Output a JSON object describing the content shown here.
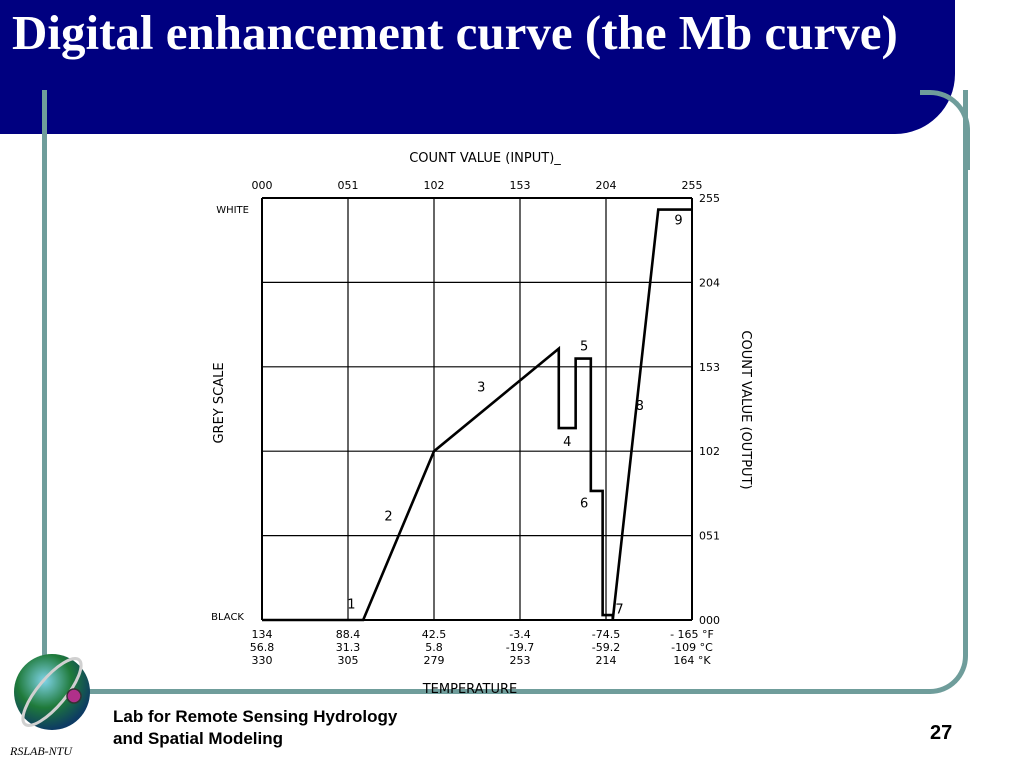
{
  "slide": {
    "title": "Digital enhancement curve (the Mb curve)",
    "footer_line1": "Lab for Remote Sensing Hydrology",
    "footer_line2": "and Spatial Modeling",
    "page_number": "27",
    "logo_text": "RSLAB-NTU",
    "colors": {
      "banner": "#000080",
      "frame": "#6f9d9b",
      "logo_globe": "#1f7a3a",
      "logo_dot": "#b0308a"
    }
  },
  "chart_data": {
    "type": "line",
    "title": "COUNT VALUE (INPUT)_",
    "xlabel": "TEMPERATURE",
    "ylabel_left": "GREY SCALE",
    "ylabel_right": "COUNT VALUE (OUTPUT)",
    "y_left_top_label": "WHITE",
    "y_left_bottom_label": "BLACK",
    "xlim": [
      0,
      255
    ],
    "ylim": [
      0,
      255
    ],
    "x_top_ticks": [
      "000",
      "051",
      "102",
      "153",
      "204",
      "255"
    ],
    "y_right_ticks": [
      "000",
      "051",
      "102",
      "153",
      "204",
      "255"
    ],
    "temperature_ticks": [
      {
        "x": 0,
        "f": "134",
        "c": "56.8",
        "k": "330"
      },
      {
        "x": 51,
        "f": "88.4",
        "c": "31.3",
        "k": "305"
      },
      {
        "x": 102,
        "f": "42.5",
        "c": "5.8",
        "k": "279"
      },
      {
        "x": 153,
        "f": "-3.4",
        "c": "-19.7",
        "k": "253"
      },
      {
        "x": 204,
        "f": "-74.5",
        "c": "-59.2",
        "k": "214"
      },
      {
        "x": 255,
        "f": "- 165 °F",
        "c": "-109 °C",
        "k": "164 °K"
      }
    ],
    "grid": true,
    "series": [
      {
        "x": [
          0,
          60,
          102,
          176,
          176,
          186,
          186,
          195,
          195,
          202,
          202,
          208,
          208,
          235,
          235,
          255
        ],
        "y": [
          0,
          0,
          102,
          164,
          116,
          116,
          158,
          158,
          78,
          78,
          3,
          3,
          0,
          248,
          248,
          248
        ]
      }
    ],
    "segment_labels": [
      {
        "label": "1",
        "x": 53,
        "y": 7
      },
      {
        "label": "2",
        "x": 75,
        "y": 60
      },
      {
        "label": "3",
        "x": 130,
        "y": 138
      },
      {
        "label": "4",
        "x": 181,
        "y": 105
      },
      {
        "label": "5",
        "x": 191,
        "y": 163
      },
      {
        "label": "6",
        "x": 191,
        "y": 68
      },
      {
        "label": "7",
        "x": 212,
        "y": 4
      },
      {
        "label": "8",
        "x": 224,
        "y": 127
      },
      {
        "label": "9",
        "x": 247,
        "y": 239
      }
    ]
  }
}
